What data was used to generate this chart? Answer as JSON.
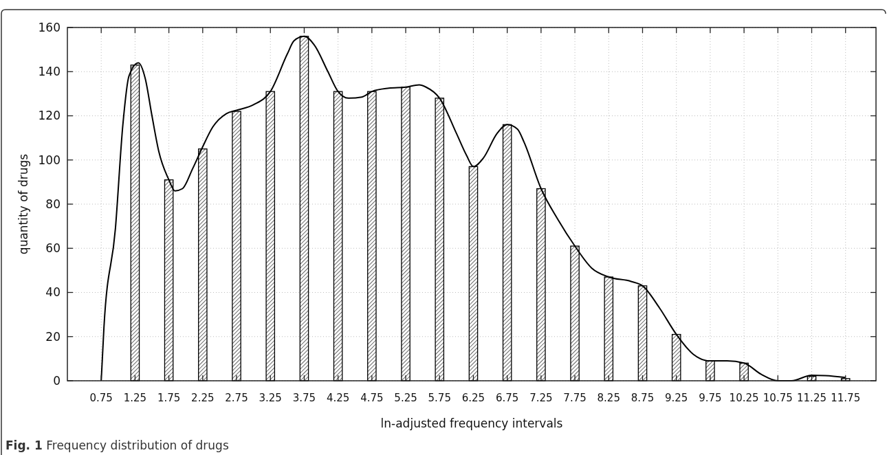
{
  "chart_data": {
    "type": "bar",
    "xlabel": "ln-adjusted frequency intervals",
    "ylabel": "quantity of drugs",
    "annotations": [
      "Fig. 1 Frequency distribution of drugs"
    ],
    "x": [
      0.75,
      1.25,
      1.75,
      2.25,
      2.75,
      3.25,
      3.75,
      4.25,
      4.75,
      5.25,
      5.75,
      6.25,
      6.75,
      7.25,
      7.75,
      8.25,
      8.75,
      9.25,
      9.75,
      10.25,
      10.75,
      11.25,
      11.75
    ],
    "series": [
      {
        "color": "#000000",
        "values": [
          0,
          143,
          91,
          105,
          122,
          131,
          156,
          131,
          131,
          133,
          128,
          97,
          116,
          87,
          61,
          47,
          43,
          21,
          9,
          8,
          0,
          2,
          1
        ]
      },
      {
        "type": "line",
        "color": "#000000",
        "x": [
          0.75,
          0.79,
          0.96,
          1.07,
          1.16,
          1.3,
          1.4,
          1.5,
          1.6,
          1.75,
          1.84,
          1.95,
          2.1,
          2.25,
          2.4,
          2.6,
          2.75,
          3.0,
          3.25,
          3.5,
          3.6,
          3.75,
          3.9,
          4.1,
          4.25,
          4.4,
          4.6,
          4.75,
          5.0,
          5.25,
          5.45,
          5.55,
          5.75,
          6.0,
          6.15,
          6.25,
          6.4,
          6.6,
          6.75,
          6.9,
          7.0,
          7.25,
          7.5,
          7.75,
          8.0,
          8.25,
          8.58,
          8.75,
          9.0,
          9.25,
          9.5,
          9.75,
          10.0,
          10.25,
          10.5,
          10.75,
          10.95,
          11.25,
          11.45,
          11.75
        ],
        "values": [
          0,
          24,
          69,
          116,
          138,
          144,
          137,
          120,
          104,
          91,
          86,
          87,
          96,
          106,
          115,
          121,
          122.5,
          125,
          131,
          148,
          154,
          156,
          152,
          140,
          131,
          128,
          128.5,
          131,
          132.5,
          133,
          134,
          133,
          128,
          112,
          102,
          97,
          101,
          112,
          116,
          114,
          108,
          87,
          73,
          61,
          51,
          47,
          45,
          43,
          33,
          21,
          12,
          9,
          9,
          8,
          3,
          0,
          0,
          2.5,
          2.3,
          1.5
        ]
      }
    ],
    "xlim": [
      0.25,
      12.2
    ],
    "xticks": [
      0.75,
      1.25,
      1.75,
      2.25,
      2.75,
      3.25,
      3.75,
      4.25,
      4.75,
      5.25,
      5.75,
      6.25,
      6.75,
      7.25,
      7.75,
      8.25,
      8.75,
      9.25,
      9.75,
      10.25,
      10.75,
      11.25,
      11.75
    ],
    "ylim": [
      0,
      160
    ],
    "yticks": [
      0,
      20,
      40,
      60,
      80,
      100,
      120,
      140,
      160
    ],
    "grid": true
  }
}
